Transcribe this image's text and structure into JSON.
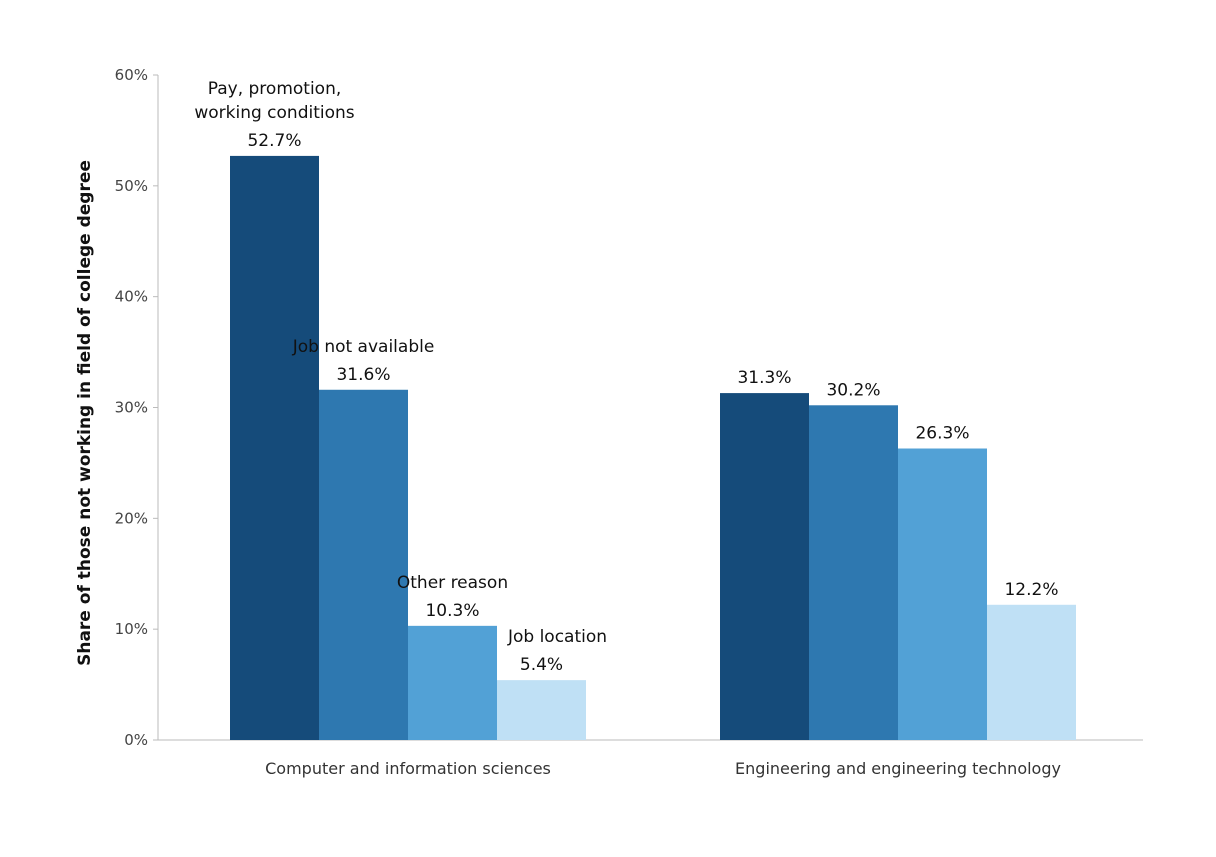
{
  "chart_data": {
    "type": "bar",
    "title": "",
    "xlabel": "",
    "ylabel": "Share of those not working in field of college degree",
    "ylim": [
      0,
      60
    ],
    "yticks": [
      "0%",
      "10%",
      "20%",
      "30%",
      "40%",
      "50%",
      "60%"
    ],
    "grid": false,
    "categories": [
      "Computer and information sciences",
      "Engineering and engineering technology"
    ],
    "series": [
      {
        "name": "Pay, promotion, working conditions",
        "values": [
          52.7,
          31.3
        ],
        "labels": [
          "52.7%",
          "31.3%"
        ],
        "color": "#154b7a"
      },
      {
        "name": "Job not available",
        "values": [
          31.6,
          30.2
        ],
        "labels": [
          "31.6%",
          "30.2%"
        ],
        "color": "#2e78b0"
      },
      {
        "name": "Other reason",
        "values": [
          10.3,
          26.3
        ],
        "labels": [
          "10.3%",
          "26.3%"
        ],
        "color": "#52a1d6"
      },
      {
        "name": "Job location",
        "values": [
          5.4,
          12.2
        ],
        "labels": [
          "5.4%",
          "12.2%"
        ],
        "color": "#bfe0f5"
      }
    ],
    "series_name_lines": [
      [
        "Pay, promotion,",
        "working conditions"
      ],
      [
        "Job not available"
      ],
      [
        "Other reason"
      ],
      [
        "Job location"
      ]
    ]
  }
}
